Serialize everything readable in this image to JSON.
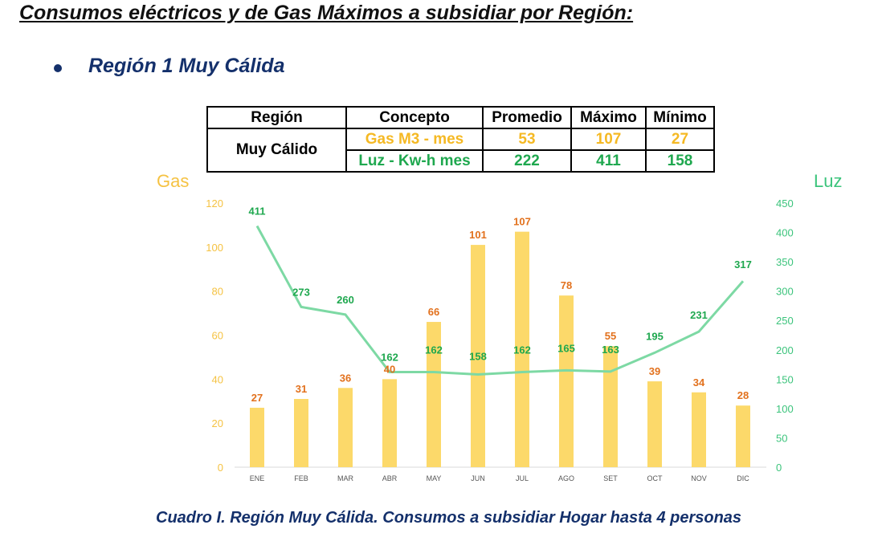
{
  "title": "Consumos eléctricos y de Gas Máximos a subsidiar por Región:",
  "subtitle": "Región 1 Muy Cálida",
  "table": {
    "headers": [
      "Región",
      "Concepto",
      "Promedio",
      "Máximo",
      "Mínimo"
    ],
    "region": "Muy Cálido",
    "rows": [
      {
        "concepto": "Gas M3 - mes",
        "promedio": "53",
        "maximo": "107",
        "minimo": "27"
      },
      {
        "concepto": "Luz - Kw-h mes",
        "promedio": "222",
        "maximo": "411",
        "minimo": "158"
      }
    ]
  },
  "caption": "Cuadro I.  Región Muy Cálida.  Consumos a subsidiar Hogar hasta 4 personas",
  "chart_data": {
    "type": "bar+line",
    "categories": [
      "ENE",
      "FEB",
      "MAR",
      "ABR",
      "MAY",
      "JUN",
      "JUL",
      "AGO",
      "SET",
      "OCT",
      "NOV",
      "DIC"
    ],
    "ylabel_left": "Gas",
    "ylabel_right": "Luz",
    "ylim_left": [
      0,
      120
    ],
    "yticks_left": [
      0,
      20,
      40,
      60,
      80,
      100,
      120
    ],
    "ylim_right": [
      0,
      450
    ],
    "yticks_right": [
      0,
      50,
      100,
      150,
      200,
      250,
      300,
      350,
      400,
      450
    ],
    "series": [
      {
        "type": "bar",
        "axis": "left",
        "values": [
          27,
          31,
          36,
          40,
          66,
          101,
          107,
          78,
          55,
          39,
          34,
          28
        ],
        "color": "#fcd96a",
        "label_color": "#e2711d"
      },
      {
        "type": "line",
        "axis": "right",
        "values": [
          411,
          273,
          260,
          162,
          162,
          158,
          162,
          165,
          163,
          195,
          231,
          317
        ],
        "color": "#7dd9a4",
        "label_color": "#1fa84f"
      }
    ],
    "grid": false,
    "legend": "none"
  }
}
